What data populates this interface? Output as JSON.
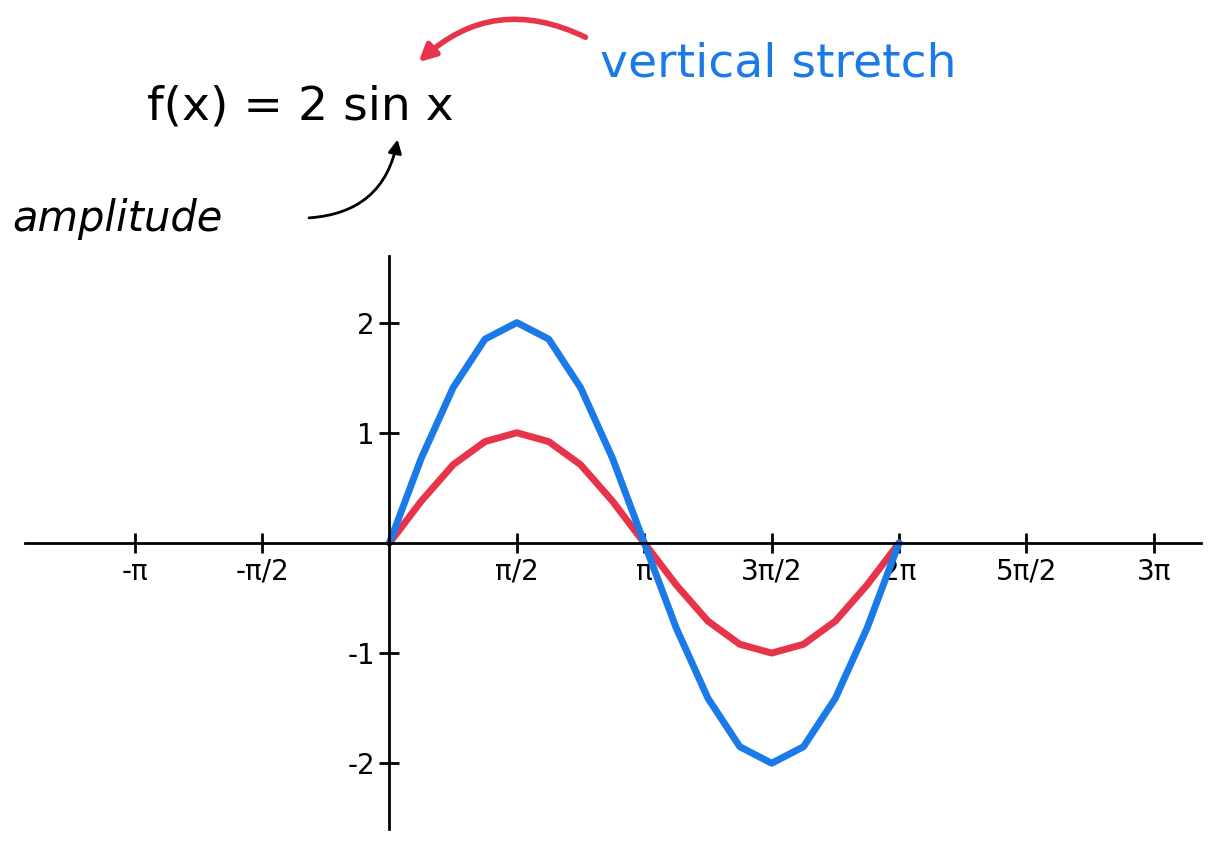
{
  "chart_data": {
    "type": "line",
    "annotations": [
      {
        "text": "f(x) = 2 sin x",
        "color": "#000000"
      },
      {
        "text": "vertical stretch",
        "color": "#1a7ae8"
      },
      {
        "text": "amplitude",
        "color": "#000000"
      }
    ],
    "x": [
      0,
      0.3927,
      0.7854,
      1.1781,
      1.5708,
      1.9635,
      2.3562,
      2.7489,
      3.1416,
      3.5343,
      3.927,
      4.3197,
      4.7124,
      5.1051,
      5.4978,
      5.8905,
      6.2832
    ],
    "series": [
      {
        "color": "#e8344a",
        "values": [
          0,
          0.38,
          0.71,
          0.92,
          1,
          0.92,
          0.71,
          0.38,
          0,
          -0.38,
          -0.71,
          -0.92,
          -1,
          -0.92,
          -0.71,
          -0.38,
          0
        ]
      },
      {
        "color": "#1a7ae8",
        "values": [
          0,
          0.77,
          1.41,
          1.85,
          2,
          1.85,
          1.41,
          0.77,
          0,
          -0.77,
          -1.41,
          -1.85,
          -2,
          -1.85,
          -1.41,
          -0.77,
          0
        ]
      }
    ],
    "xlim": [
      -4.5,
      10
    ],
    "ylim": [
      -2.6,
      2.6
    ],
    "xticks": [
      {
        "value": -3.1416,
        "label": "-π"
      },
      {
        "value": -1.5708,
        "label": "-π/2"
      },
      {
        "value": 1.5708,
        "label": "π/2"
      },
      {
        "value": 3.1416,
        "label": "π"
      },
      {
        "value": 4.7124,
        "label": "3π/2"
      },
      {
        "value": 6.2832,
        "label": "2π"
      },
      {
        "value": 7.854,
        "label": "5π/2"
      },
      {
        "value": 9.4248,
        "label": "3π"
      }
    ],
    "yticks": [
      -2,
      -1,
      1,
      2
    ],
    "grid": false,
    "tick_labels": true
  }
}
